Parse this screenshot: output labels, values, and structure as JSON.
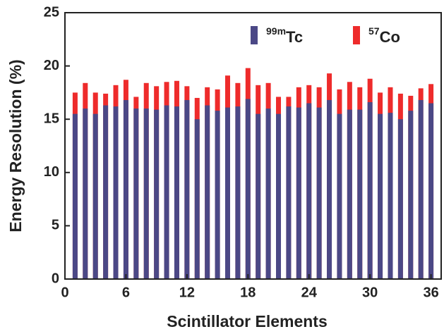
{
  "chart_data": {
    "type": "bar",
    "overlay": true,
    "x_label": "Scintillator Elements",
    "y_label": "Energy Resolution (%)",
    "x": [
      1,
      2,
      3,
      4,
      5,
      6,
      7,
      8,
      9,
      10,
      11,
      12,
      13,
      14,
      15,
      16,
      17,
      18,
      19,
      20,
      21,
      22,
      23,
      24,
      25,
      26,
      27,
      28,
      29,
      30,
      31,
      32,
      33,
      34,
      35,
      36
    ],
    "series": [
      {
        "name": "57Co",
        "color": "#ee2b2b",
        "values": [
          17.5,
          18.4,
          17.5,
          17.4,
          18.2,
          18.7,
          17.1,
          18.4,
          18.1,
          18.5,
          18.6,
          18.1,
          17.0,
          18.0,
          17.8,
          19.1,
          18.4,
          19.8,
          18.2,
          18.4,
          17.1,
          17.1,
          18.0,
          18.2,
          18.0,
          19.3,
          17.8,
          18.5,
          18.0,
          18.8,
          17.5,
          18.0,
          17.4,
          17.2,
          17.9,
          18.3
        ]
      },
      {
        "name": "99mTc",
        "color": "#4b4886",
        "values": [
          15.5,
          16.0,
          15.5,
          16.3,
          16.2,
          16.8,
          16.0,
          16.0,
          15.9,
          16.3,
          16.2,
          16.8,
          15.0,
          16.3,
          15.8,
          16.1,
          16.2,
          16.9,
          15.5,
          16.0,
          15.5,
          16.2,
          16.1,
          16.5,
          16.1,
          16.8,
          15.5,
          15.9,
          15.9,
          16.6,
          15.5,
          15.6,
          15.0,
          15.8,
          16.8,
          16.5
        ]
      }
    ],
    "legend_order": [
      1,
      0
    ],
    "legend": "top-right",
    "xlim": [
      0,
      37
    ],
    "xticks": [
      0,
      6,
      12,
      18,
      24,
      30,
      36
    ],
    "ylim": [
      0,
      25
    ],
    "yticks": [
      0,
      5,
      10,
      15,
      20,
      25
    ]
  }
}
